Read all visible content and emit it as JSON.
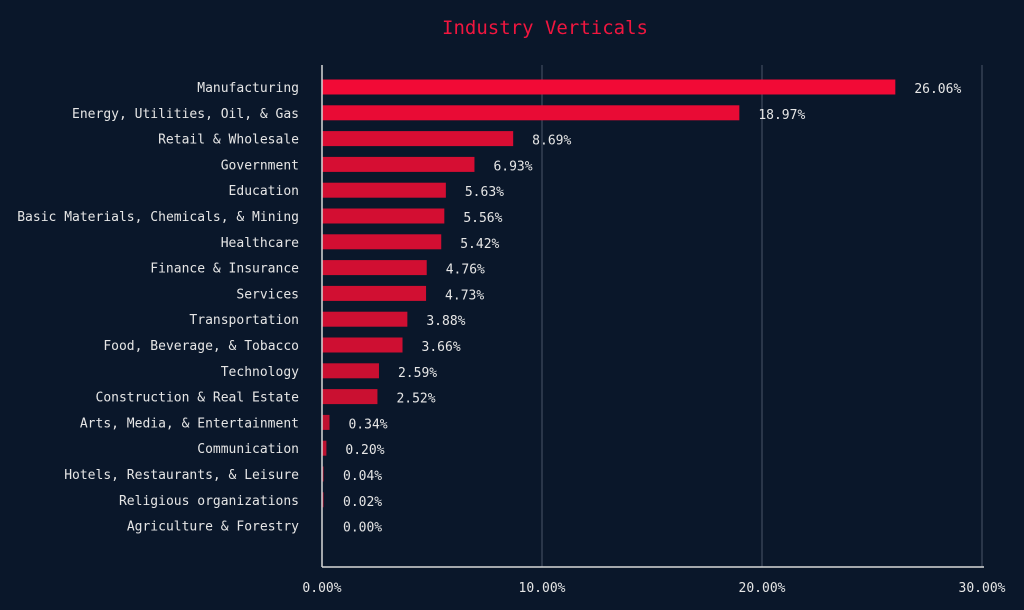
{
  "chart_data": {
    "type": "bar",
    "orientation": "horizontal",
    "title": "Industry Verticals",
    "xlabel": "",
    "ylabel": "",
    "xlim": [
      0,
      30
    ],
    "xticks": [
      0,
      10,
      20,
      30
    ],
    "xtick_labels": [
      "0.00%",
      "10.00%",
      "20.00%",
      "30.00%"
    ],
    "grid": "vertical",
    "categories": [
      "Manufacturing",
      "Energy, Utilities, Oil, & Gas",
      "Retail & Wholesale",
      "Government",
      "Education",
      "Basic Materials, Chemicals, & Mining",
      "Healthcare",
      "Finance & Insurance",
      "Services",
      "Transportation",
      "Food, Beverage, & Tobacco",
      "Technology",
      "Construction & Real Estate",
      "Arts, Media, & Entertainment",
      "Communication",
      "Hotels, Restaurants, & Leisure",
      "Religious organizations",
      "Agriculture & Forestry"
    ],
    "values": [
      26.06,
      18.97,
      8.69,
      6.93,
      5.63,
      5.56,
      5.42,
      4.76,
      4.73,
      3.88,
      3.66,
      2.59,
      2.52,
      0.34,
      0.2,
      0.04,
      0.02,
      0.0
    ],
    "value_labels": [
      "26.06%",
      "18.97%",
      "8.69%",
      "6.93%",
      "5.63%",
      "5.56%",
      "5.42%",
      "4.76%",
      "4.73%",
      "3.88%",
      "3.66%",
      "2.59%",
      "2.52%",
      "0.34%",
      "0.20%",
      "0.04%",
      "0.02%",
      "0.00%"
    ],
    "colors": {
      "bar_high": "#f20a36",
      "bar_low": "#b8122f",
      "background": "#0a172a",
      "grid": "#4a5568",
      "axis": "#d8d8d8",
      "title": "#f0163f"
    }
  }
}
